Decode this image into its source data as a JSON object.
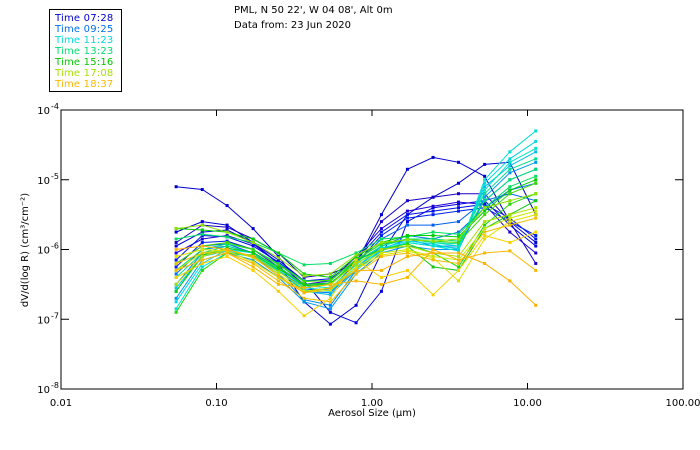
{
  "header": {
    "station_line": "PML, N 50 22', W 04 08', Alt 0m",
    "date_line": "Data from: 23 Jun 2020"
  },
  "legend": [
    {
      "label": "Time 07:28",
      "color": "#0000d0"
    },
    {
      "label": "Time 09:25",
      "color": "#0070f0"
    },
    {
      "label": "Time 11:23",
      "color": "#00d8e0"
    },
    {
      "label": "Time 13:23",
      "color": "#00e070"
    },
    {
      "label": "Time 15:16",
      "color": "#00c800"
    },
    {
      "label": "Time 17:08",
      "color": "#a8e000"
    },
    {
      "label": "Time 18:37",
      "color": "#f8b800"
    }
  ],
  "chart_data": {
    "type": "line",
    "title": "",
    "xlabel": "Aerosol Size (μm)",
    "ylabel": "dV/d(log R)  (cm³/cm⁻²)",
    "xscale": "log",
    "yscale": "log",
    "xlim": [
      0.01,
      100.0
    ],
    "ylim": [
      1e-08,
      0.0001
    ],
    "x_ticks": [
      {
        "value": 0.01,
        "label": "0.01"
      },
      {
        "value": 0.1,
        "label": "0.10"
      },
      {
        "value": 1.0,
        "label": "1.00"
      },
      {
        "value": 10.0,
        "label": "10.00"
      },
      {
        "value": 100.0,
        "label": "100.00"
      }
    ],
    "y_ticks": [
      {
        "value": 0.0001,
        "base": "10",
        "exp": "-4"
      },
      {
        "value": 1e-05,
        "base": "10",
        "exp": "-5"
      },
      {
        "value": 1e-06,
        "base": "10",
        "exp": "-6"
      },
      {
        "value": 1e-07,
        "base": "10",
        "exp": "-7"
      },
      {
        "value": 1e-08,
        "base": "10",
        "exp": "-8"
      }
    ],
    "legend_position": "top-left",
    "grid": false,
    "x": [
      0.055,
      0.081,
      0.117,
      0.172,
      0.25,
      0.366,
      0.54,
      0.79,
      1.15,
      1.69,
      2.47,
      3.6,
      5.3,
      7.7,
      11.3
    ],
    "series_log10": [
      {
        "name": "07:28 a",
        "color": "#0000d0",
        "values": [
          -5.1,
          -5.14,
          -5.37,
          -5.7,
          -6.1,
          -6.58,
          -6.56,
          -6.2,
          -5.5,
          -4.85,
          -4.68,
          -4.75,
          -4.95,
          -5.6,
          -5.9
        ]
      },
      {
        "name": "07:28 b",
        "color": "#0000d0",
        "values": [
          -5.75,
          -5.6,
          -5.65,
          -5.9,
          -6.2,
          -6.75,
          -7.07,
          -6.8,
          -6.05,
          -5.5,
          -5.25,
          -5.05,
          -4.78,
          -4.75,
          -5.5
        ]
      },
      {
        "name": "07:28 c",
        "color": "#1800c8",
        "values": [
          -5.9,
          -5.65,
          -5.68,
          -5.85,
          -6.05,
          -6.4,
          -6.35,
          -6.2,
          -5.6,
          -5.3,
          -5.25,
          -5.2,
          -5.2,
          -5.6,
          -6.2
        ]
      },
      {
        "name": "07:28 d",
        "color": "#0000e0",
        "values": [
          -5.95,
          -5.75,
          -5.72,
          -5.9,
          -6.15,
          -6.45,
          -6.9,
          -7.05,
          -6.6,
          -5.6,
          -5.4,
          -5.35,
          -5.3,
          -5.65,
          -5.95
        ]
      },
      {
        "name": "07:28 e",
        "color": "#2000d8",
        "values": [
          -6.05,
          -5.85,
          -5.8,
          -5.92,
          -6.2,
          -6.5,
          -6.45,
          -6.1,
          -5.7,
          -5.45,
          -5.38,
          -5.32,
          -5.35,
          -5.75,
          -6.05
        ]
      },
      {
        "name": "07:28 f",
        "color": "#0010e8",
        "values": [
          -6.15,
          -5.8,
          -5.82,
          -5.95,
          -6.18,
          -6.45,
          -6.42,
          -6.15,
          -5.75,
          -5.5,
          -5.45,
          -5.4,
          -5.35,
          -5.55,
          -5.85
        ]
      },
      {
        "name": "07:28 g",
        "color": "#0020e8",
        "values": [
          -6.25,
          -5.9,
          -5.88,
          -6.0,
          -6.25,
          -6.5,
          -6.48,
          -6.2,
          -5.8,
          -5.55,
          -5.5,
          -5.45,
          -5.4,
          -5.6,
          -5.8
        ]
      },
      {
        "name": "09:25 a",
        "color": "#0060f0",
        "values": [
          -6.2,
          -5.95,
          -5.92,
          -6.05,
          -6.3,
          -6.55,
          -6.5,
          -6.2,
          -5.85,
          -5.65,
          -5.65,
          -5.6,
          -5.3,
          -5.2,
          -5.3
        ]
      },
      {
        "name": "09:25 b",
        "color": "#0070f0",
        "values": [
          -6.35,
          -6.0,
          -5.95,
          -6.05,
          -6.3,
          -6.6,
          -6.62,
          -6.28,
          -5.95,
          -5.8,
          -5.85,
          -5.75,
          -5.4,
          -5.15,
          -5.05
        ]
      },
      {
        "name": "09:25 c",
        "color": "#0088f0",
        "values": [
          -6.5,
          -6.05,
          -6.0,
          -6.1,
          -6.35,
          -6.72,
          -6.8,
          -6.3,
          -6.0,
          -5.85,
          -5.95,
          -5.95,
          -5.3,
          -5.0,
          -4.85
        ]
      },
      {
        "name": "09:25 d",
        "color": "#0098f0",
        "values": [
          -6.7,
          -6.15,
          -6.05,
          -6.15,
          -6.4,
          -6.75,
          -6.85,
          -6.35,
          -6.05,
          -5.95,
          -6.0,
          -6.0,
          -5.25,
          -4.9,
          -4.75
        ]
      },
      {
        "name": "11:23 a",
        "color": "#00c0e8",
        "values": [
          -6.55,
          -6.1,
          -6.02,
          -6.1,
          -6.3,
          -6.6,
          -6.65,
          -6.3,
          -6.02,
          -5.9,
          -5.95,
          -5.98,
          -5.1,
          -4.8,
          -4.6
        ]
      },
      {
        "name": "11:23 b",
        "color": "#00d8e0",
        "values": [
          -6.75,
          -6.2,
          -6.0,
          -6.05,
          -6.25,
          -6.55,
          -6.58,
          -6.25,
          -5.98,
          -5.88,
          -5.92,
          -6.0,
          -5.05,
          -4.7,
          -4.45
        ]
      },
      {
        "name": "11:23 c",
        "color": "#00e0d0",
        "values": [
          -6.85,
          -6.25,
          -6.05,
          -6.1,
          -6.3,
          -6.58,
          -6.6,
          -6.28,
          -6.0,
          -5.9,
          -5.95,
          -6.02,
          -5.0,
          -4.6,
          -4.3
        ]
      },
      {
        "name": "11:23 d",
        "color": "#00e8c0",
        "values": [
          -6.6,
          -6.1,
          -5.98,
          -6.05,
          -6.28,
          -6.52,
          -6.55,
          -6.22,
          -5.95,
          -5.85,
          -5.9,
          -5.95,
          -5.15,
          -4.75,
          -4.55
        ]
      },
      {
        "name": "13:23 a",
        "color": "#00e090",
        "values": [
          -6.4,
          -6.05,
          -5.95,
          -6.05,
          -6.25,
          -6.5,
          -6.5,
          -6.18,
          -5.95,
          -5.85,
          -5.9,
          -5.92,
          -5.2,
          -4.85,
          -4.7
        ]
      },
      {
        "name": "13:23 b",
        "color": "#00e070",
        "values": [
          -6.3,
          -6.0,
          -5.92,
          -6.0,
          -6.2,
          -6.45,
          -6.45,
          -6.15,
          -5.92,
          -5.85,
          -5.85,
          -5.88,
          -5.3,
          -5.0,
          -4.85
        ]
      },
      {
        "name": "13:23 c",
        "color": "#00e060",
        "values": [
          -5.85,
          -5.78,
          -5.82,
          -5.9,
          -6.05,
          -6.22,
          -6.2,
          -6.05,
          -5.85,
          -5.82,
          -5.75,
          -5.78,
          -5.4,
          -5.1,
          -4.95
        ]
      },
      {
        "name": "15:16 a",
        "color": "#00d000",
        "values": [
          -5.7,
          -5.72,
          -5.75,
          -5.85,
          -6.05,
          -6.35,
          -6.4,
          -6.1,
          -5.9,
          -5.8,
          -5.8,
          -5.82,
          -5.45,
          -5.15,
          -5.0
        ]
      },
      {
        "name": "15:16 b",
        "color": "#20d800",
        "values": [
          -6.9,
          -6.3,
          -6.05,
          -6.08,
          -6.28,
          -6.5,
          -6.48,
          -6.2,
          -6.0,
          -5.92,
          -6.05,
          -6.25,
          -5.65,
          -5.35,
          -5.2
        ]
      },
      {
        "name": "15:16 c",
        "color": "#40d800",
        "values": [
          -6.2,
          -5.95,
          -5.9,
          -6.0,
          -6.22,
          -6.46,
          -6.44,
          -6.14,
          -5.92,
          -5.86,
          -5.88,
          -5.9,
          -5.5,
          -5.2,
          -5.05
        ]
      },
      {
        "name": "15:16 d",
        "color": "#10c810",
        "values": [
          -6.6,
          -6.08,
          -5.98,
          -6.04,
          -6.26,
          -6.52,
          -6.5,
          -6.15,
          -6.0,
          -5.95,
          -6.25,
          -6.3,
          -5.7,
          -5.5,
          -5.3
        ]
      },
      {
        "name": "17:08 a",
        "color": "#90e000",
        "values": [
          -5.7,
          -5.65,
          -5.75,
          -5.9,
          -6.12,
          -6.38,
          -6.35,
          -6.08,
          -5.9,
          -5.86,
          -5.88,
          -5.85,
          -5.4,
          -5.3,
          -5.2
        ]
      },
      {
        "name": "17:08 b",
        "color": "#a8e000",
        "values": [
          -6.5,
          -6.1,
          -6.0,
          -6.1,
          -6.32,
          -6.55,
          -6.5,
          -6.2,
          -6.0,
          -5.95,
          -6.05,
          -6.1,
          -5.6,
          -5.5,
          -5.4
        ]
      },
      {
        "name": "17:08 c",
        "color": "#c8e800",
        "values": [
          -6.3,
          -6.05,
          -6.0,
          -6.12,
          -6.35,
          -6.6,
          -6.55,
          -6.25,
          -6.05,
          -6.0,
          -6.1,
          -6.15,
          -5.7,
          -5.55,
          -5.45
        ]
      },
      {
        "name": "17:08 d",
        "color": "#e0e000",
        "values": [
          -6.1,
          -6.0,
          -6.02,
          -6.18,
          -6.4,
          -6.62,
          -6.58,
          -6.28,
          -6.08,
          -6.02,
          -6.12,
          -6.45,
          -5.85,
          -5.6,
          -5.5
        ]
      },
      {
        "name": "18:37 a",
        "color": "#f0c000",
        "values": [
          -6.2,
          -6.05,
          -6.05,
          -6.2,
          -6.45,
          -6.7,
          -6.75,
          -6.35,
          -6.1,
          -6.05,
          -6.15,
          -6.2,
          -5.75,
          -5.65,
          -5.55
        ]
      },
      {
        "name": "18:37 b",
        "color": "#f8b800",
        "values": [
          -6.3,
          -6.15,
          -6.05,
          -6.25,
          -6.5,
          -6.55,
          -6.5,
          -6.45,
          -6.5,
          -6.4,
          -6.0,
          -6.15,
          -6.05,
          -6.02,
          -6.3
        ]
      },
      {
        "name": "18:37 c",
        "color": "#f8d000",
        "values": [
          -6.4,
          -6.2,
          -6.1,
          -6.3,
          -6.6,
          -6.95,
          -6.7,
          -6.15,
          -6.4,
          -6.3,
          -6.65,
          -6.3,
          -5.8,
          -5.9,
          -5.75
        ]
      },
      {
        "name": "18:37 d",
        "color": "#ffb000",
        "values": [
          -6.0,
          -5.95,
          -6.0,
          -6.1,
          -6.38,
          -6.62,
          -6.55,
          -6.3,
          -6.3,
          -6.1,
          -6.05,
          -6.05,
          -6.2,
          -6.45,
          -6.8
        ]
      }
    ]
  }
}
